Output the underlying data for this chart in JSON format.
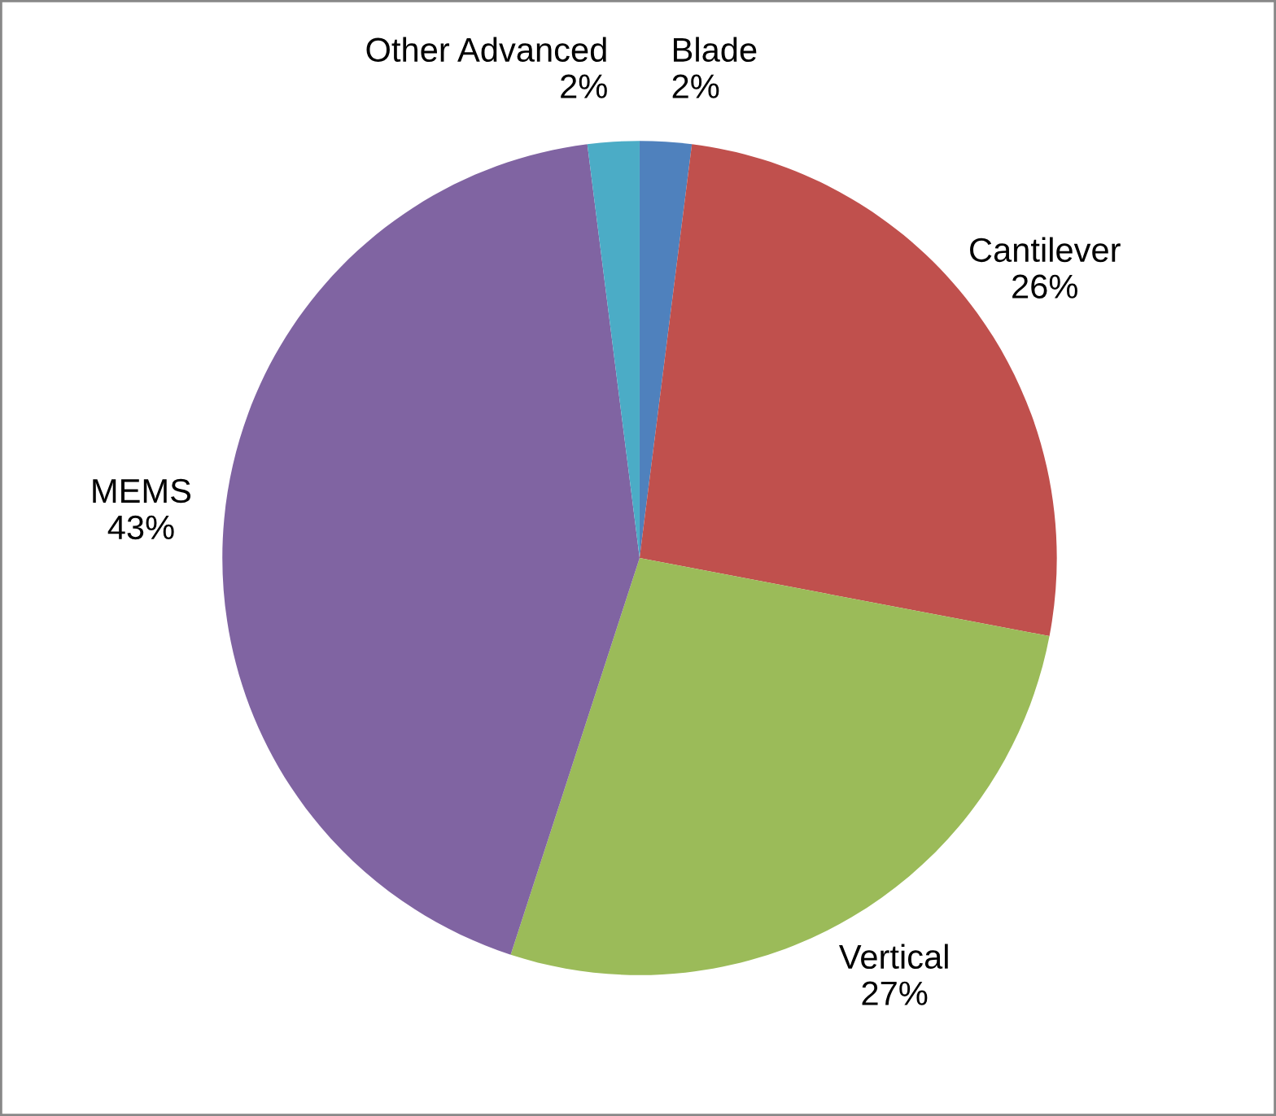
{
  "chart_data": {
    "type": "pie",
    "categories": [
      "Blade",
      "Cantilever",
      "Vertical",
      "MEMS",
      "Other Advanced"
    ],
    "values": [
      2,
      26,
      27,
      43,
      2
    ],
    "value_labels": [
      "2%",
      "26%",
      "27%",
      "43%",
      "2%"
    ],
    "colors": [
      "#4f81bd",
      "#c0504d",
      "#9bbb59",
      "#8064a2",
      "#4bacc6"
    ]
  }
}
